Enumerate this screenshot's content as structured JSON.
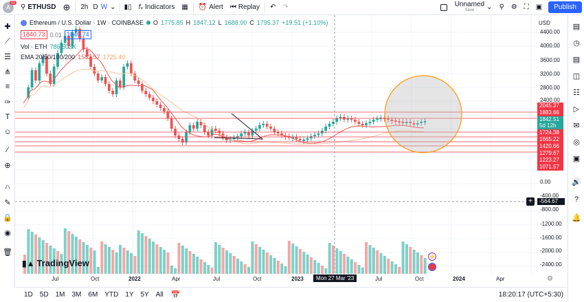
{
  "topbar": {
    "badge_count": "11",
    "avatar_letter": "A",
    "symbol": "ETHUSD",
    "intervals": [
      "2h",
      "D",
      "W"
    ],
    "indicators_label": "Indicators",
    "alert_label": "Alert",
    "replay_label": "Replay",
    "layout_name": "Unnamed",
    "layout_status": "Save",
    "publish_label": "Publish"
  },
  "legend": {
    "title": "Ethereum / U.S. Dollar · 1W · COINBASE",
    "o_label": "O",
    "o": "1775.85",
    "h_label": "H",
    "h": "1847.12",
    "l_label": "L",
    "l": "1688.00",
    "c_label": "C",
    "c": "1795.37",
    "change": "+19.51 (+1.10%)",
    "bid": "1840.73",
    "spread": "0.01",
    "ask": "1840.74",
    "vol_label": "Vol · ETH",
    "vol_value": "786.503K",
    "ema_label": "EMA 20/50/100/200",
    "ema_a": "1582.57",
    "ema_b": "1725.40"
  },
  "yaxis": {
    "currency": "USD",
    "ticks": [
      "4400.00",
      "4000.00",
      "3600.00",
      "3200.00",
      "2800.00",
      "2400.00",
      "0.00",
      "-400.00",
      "-800.00",
      "-1200.00",
      "-1600.00",
      "-2000.00",
      "-2400.00"
    ],
    "price_tags": [
      "2045.37",
      "1883.66",
      "1842.51",
      "5d 12h",
      "1724.38",
      "1665.22",
      "1420.66",
      "1279.67",
      "1223.27",
      "1071.57"
    ],
    "crosshair_value": "-564.67"
  },
  "xaxis": {
    "labels": [
      "Jul",
      "Oct",
      "2022",
      "Apr",
      "Jul",
      "Oct",
      "2023",
      "Jul",
      "Oct",
      "2024",
      "Apr"
    ],
    "crosshair_date": "Mon 27 Mar '23"
  },
  "bottombar": {
    "ranges": [
      "1D",
      "5D",
      "1M",
      "3M",
      "6M",
      "YTD",
      "1Y",
      "5Y",
      "All"
    ],
    "clock": "18:20:17 (UTC+5:30)"
  },
  "brand": "TradingView",
  "colors": {
    "up": "#26a69a",
    "down": "#ef5350",
    "accent": "#2962ff",
    "line": "#f23645",
    "circle": "#ff9800"
  }
}
